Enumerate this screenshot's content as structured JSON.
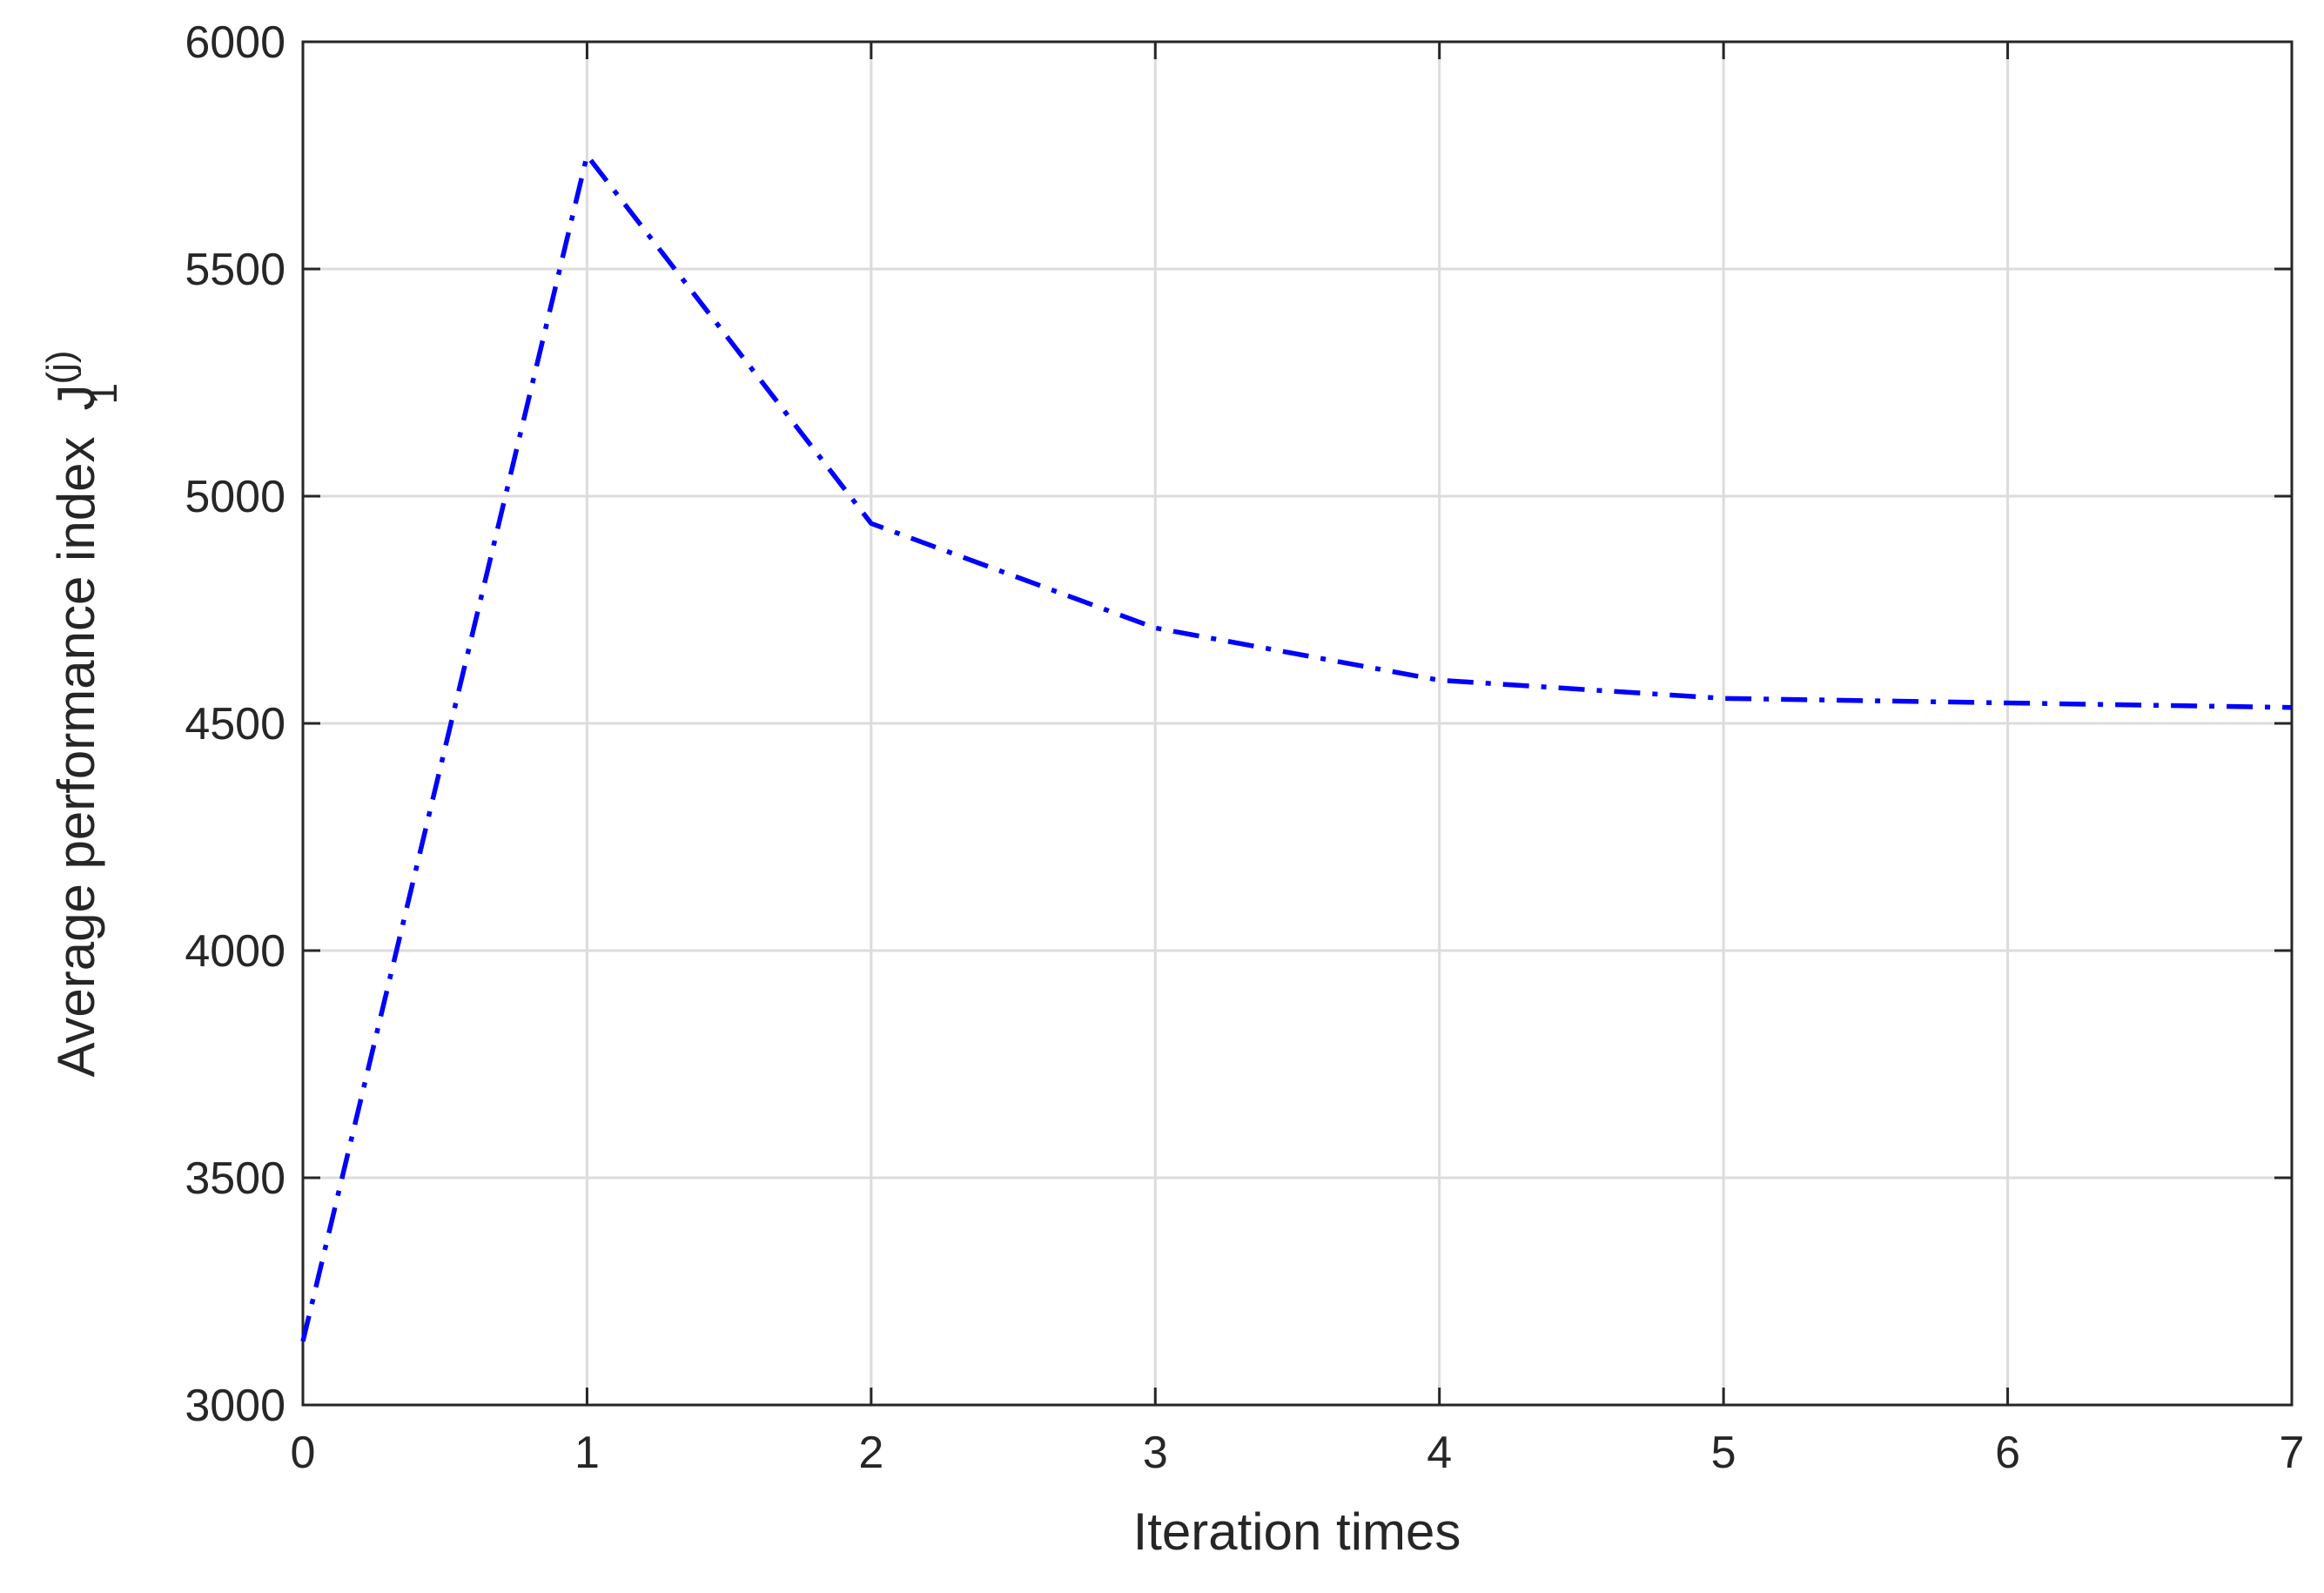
{
  "chart_data": {
    "type": "line",
    "xlabel": "Iteration times",
    "ylabel": "Average performance index",
    "ylabel_symbol": "J",
    "ylabel_subscript": "1",
    "ylabel_superscript": "(j)",
    "x": [
      0,
      1,
      2,
      3,
      4,
      5,
      6,
      7
    ],
    "values": [
      3140,
      5750,
      4940,
      4710,
      4595,
      4555,
      4545,
      4535
    ],
    "color": "#0000ff",
    "line_style": "dashdot",
    "xlim": [
      0,
      7
    ],
    "xticks": [
      0,
      1,
      2,
      3,
      4,
      5,
      6,
      7
    ],
    "ylim": [
      3000,
      6000
    ],
    "yticks": [
      3000,
      3500,
      4000,
      4500,
      5000,
      5500,
      6000
    ],
    "grid": true
  }
}
